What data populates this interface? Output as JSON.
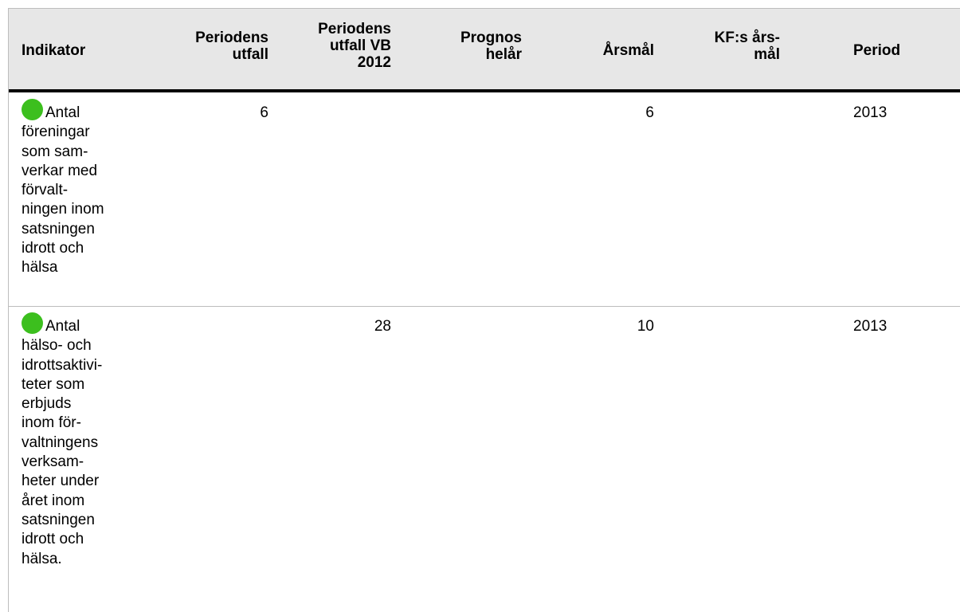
{
  "headers": {
    "indikator": "Indikator",
    "periodens_utfall": [
      "Periodens",
      "utfall"
    ],
    "periodens_utfall_vb": [
      "Periodens",
      "utfall VB",
      "2012"
    ],
    "prognos": [
      "Prognos",
      "helår"
    ],
    "arsmal": "Årsmål",
    "kf_arsmal": [
      "KF:s års-",
      "mål"
    ],
    "period": "Period"
  },
  "rows": [
    {
      "status_color": "#3cbf1e",
      "indikator_lines": [
        "Antal",
        "föreningar",
        "som sam-",
        "verkar med",
        "förvalt-",
        "ningen inom",
        "satsningen",
        "idrott och",
        "hälsa"
      ],
      "periodens_utfall": "6",
      "periodens_utfall_vb": "",
      "prognos": "",
      "arsmal": "6",
      "kf_arsmal": "",
      "period": "2013"
    },
    {
      "status_color": "#3cbf1e",
      "indikator_lines": [
        "Antal",
        "hälso- och",
        "idrottsaktivi-",
        "teter som",
        "erbjuds",
        "inom för-",
        "valtningens",
        "verksam-",
        "heter under",
        "året inom",
        "satsningen",
        "idrott och",
        "hälsa."
      ],
      "periodens_utfall": "",
      "periodens_utfall_vb": "28",
      "prognos": "",
      "arsmal": "10",
      "kf_arsmal": "",
      "period": "2013"
    }
  ]
}
